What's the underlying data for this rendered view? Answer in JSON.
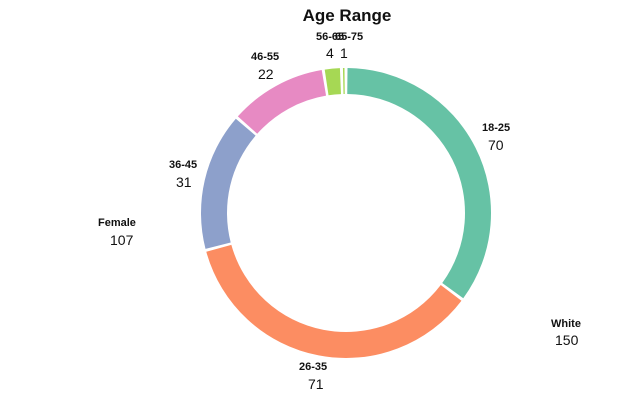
{
  "colors": {
    "teal": "#66c2a5",
    "orange": "#fc8d62",
    "blue": "#8da0cb",
    "pink": "#e78ac3",
    "green": "#a6d854"
  },
  "chart_data": [
    {
      "type": "pie",
      "variant": "donut",
      "title": "",
      "categories": [
        "Female"
      ],
      "values": [
        107
      ],
      "colors": [
        "#66c2a5"
      ],
      "note": "partially cropped at left edge; only the Female segment is visible"
    },
    {
      "type": "pie",
      "variant": "donut",
      "title": "Age Range",
      "categories": [
        "18-25",
        "26-35",
        "36-45",
        "46-55",
        "56-65",
        "65-75"
      ],
      "values": [
        70,
        71,
        31,
        22,
        4,
        1
      ],
      "colors": [
        "#66c2a5",
        "#fc8d62",
        "#8da0cb",
        "#e78ac3",
        "#a6d854",
        "#a6d854"
      ]
    },
    {
      "type": "pie",
      "variant": "donut",
      "title": "",
      "categories": [
        "White"
      ],
      "values": [
        150
      ],
      "colors": [
        "#a6d854"
      ],
      "note": "partially cropped at right edge; only the White segment is visible"
    }
  ]
}
